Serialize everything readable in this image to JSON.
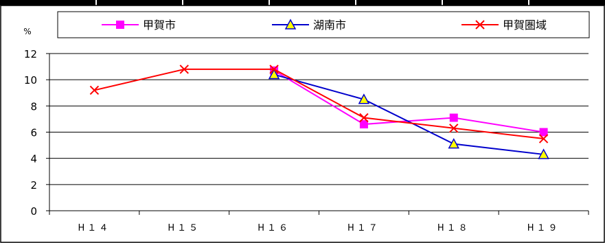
{
  "chart_data": {
    "type": "line",
    "categories": [
      "H14",
      "H15",
      "H16",
      "H17",
      "H18",
      "H19"
    ],
    "category_labels": [
      "H１４",
      "H１５",
      "H１６",
      "H１７",
      "H１８",
      "H１９"
    ],
    "ylabel": "%",
    "ylim": [
      0,
      12
    ],
    "yticks": [
      0,
      2,
      4,
      6,
      8,
      10,
      12
    ],
    "grid": true,
    "legend_position": "top",
    "series": [
      {
        "name": "甲賀市",
        "color": "#ff00ff",
        "marker": "square",
        "values": [
          null,
          null,
          10.7,
          6.6,
          7.1,
          6.0
        ]
      },
      {
        "name": "湖南市",
        "color": "#0000cc",
        "marker": "triangle",
        "values": [
          null,
          null,
          10.4,
          8.5,
          5.1,
          4.3
        ]
      },
      {
        "name": "甲賀圏域",
        "color": "#ff0000",
        "marker": "x",
        "values": [
          9.2,
          10.8,
          10.8,
          7.1,
          6.3,
          5.5
        ]
      }
    ]
  }
}
